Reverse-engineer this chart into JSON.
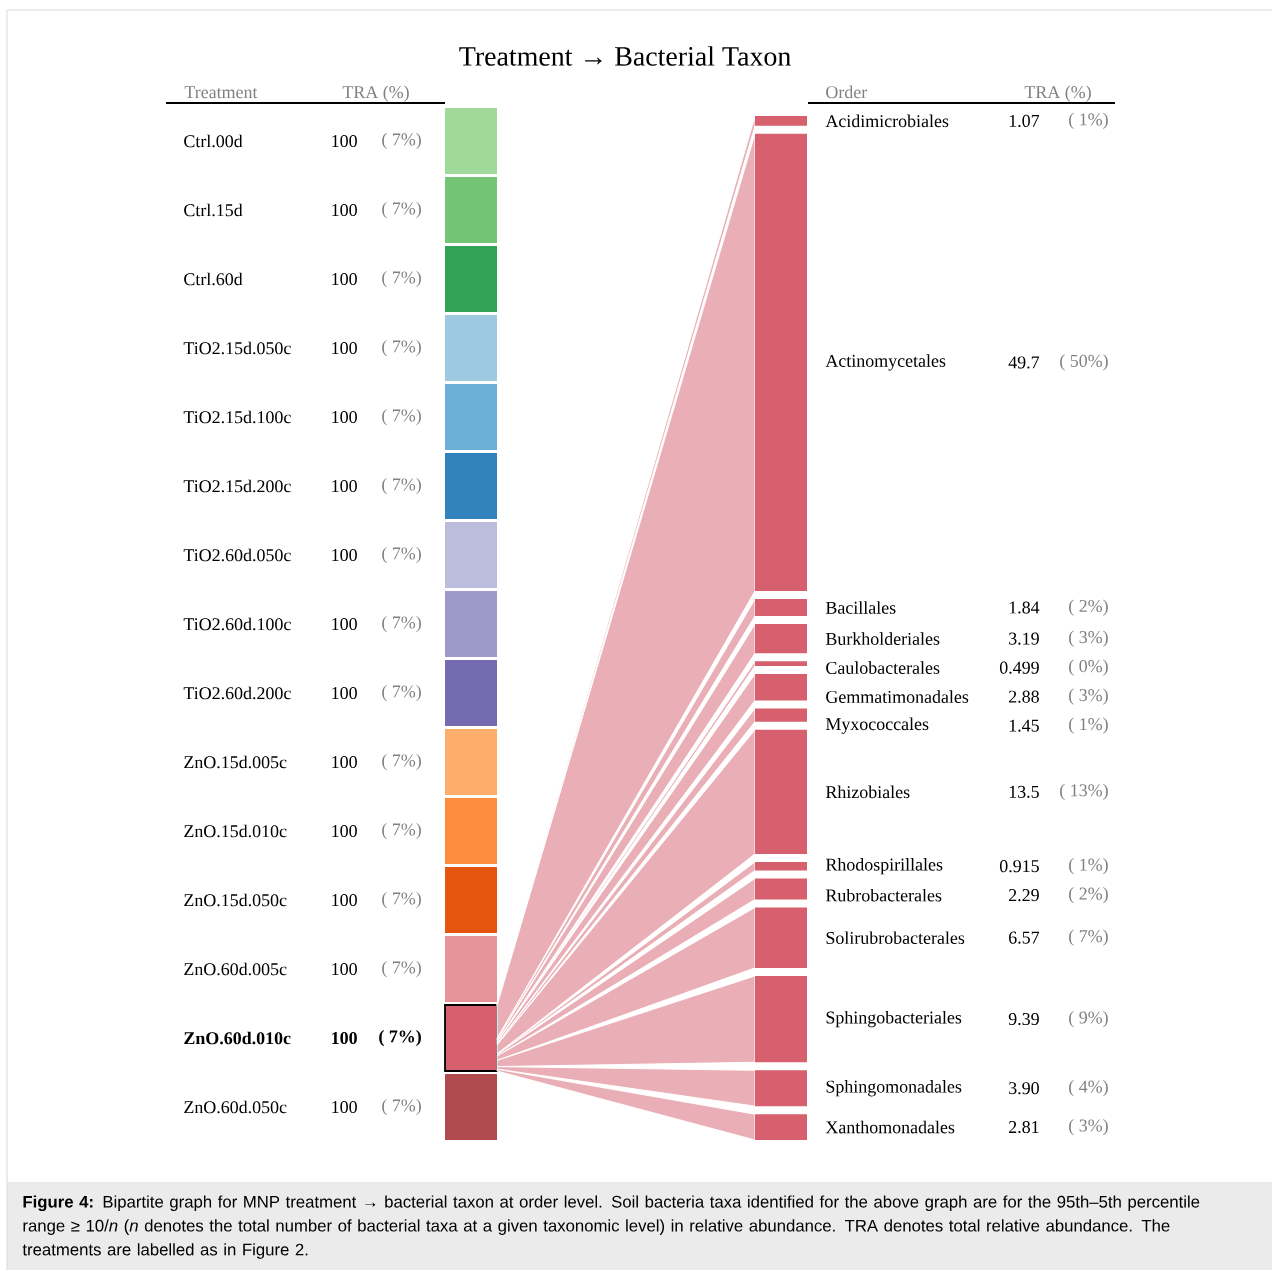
{
  "chart_data": [
    {
      "type": "other",
      "title": "Treatment → Bacterial Taxon",
      "xlabel": "Treatment",
      "ylabel": "TRA (%)",
      "categories": [
        "Ctrl.00d",
        "Ctrl.15d",
        "Ctrl.60d",
        "TiO2.15d.050c",
        "TiO2.15d.100c",
        "TiO2.15d.200c",
        "TiO2.60d.050c",
        "TiO2.60d.100c",
        "TiO2.60d.200c",
        "ZnO.15d.005c",
        "ZnO.15d.010c",
        "ZnO.15d.050c",
        "ZnO.60d.005c",
        "ZnO.60d.010c",
        "ZnO.60d.050c"
      ],
      "values": [
        100,
        100,
        100,
        100,
        100,
        100,
        100,
        100,
        100,
        100,
        100,
        100,
        100,
        100,
        100
      ],
      "value_labels": [
        "100",
        "100",
        "100",
        "100",
        "100",
        "100",
        "100",
        "100",
        "100",
        "100",
        "100",
        "100",
        "100",
        "100",
        "100"
      ],
      "annotations": [
        "( 7%)",
        "( 7%)",
        "( 7%)",
        "( 7%)",
        "( 7%)",
        "( 7%)",
        "( 7%)",
        "( 7%)",
        "( 7%)",
        "( 7%)",
        "( 7%)",
        "( 7%)",
        "( 7%)",
        "( 7%)",
        "( 7%)"
      ],
      "colors": [
        "#a1d99b",
        "#74c476",
        "#31a354",
        "#9ecae1",
        "#6baed6",
        "#3182bd",
        "#bcbddc",
        "#9e9ac8",
        "#756bb1",
        "#fdae6b",
        "#fd8d3c",
        "#e6550d",
        "#e6939a",
        "#d6606d",
        "#b04a4e"
      ]
    },
    {
      "type": "other",
      "xlabel": "Order",
      "ylabel": "TRA (%)",
      "categories": [
        "Acidimicrobiales",
        "Actinomycetales",
        "Bacillales",
        "Burkholderiales",
        "Caulobacterales",
        "Gemmatimonadales",
        "Myxococcales",
        "Rhizobiales",
        "Rhodospirillales",
        "Rubrobacterales",
        "Solirubrobacterales",
        "Sphingobacteriales",
        "Sphingomonadales",
        "Xanthomonadales"
      ],
      "values": [
        1.07,
        49.7,
        1.84,
        3.19,
        0.499,
        2.88,
        1.45,
        13.5,
        0.915,
        2.29,
        6.57,
        9.39,
        3.9,
        2.81
      ],
      "value_labels": [
        "1.07",
        "49.7",
        "1.84",
        "3.19",
        "0.499",
        "2.88",
        "1.45",
        "13.5",
        "0.915",
        "2.29",
        "6.57",
        "9.39",
        "3.90",
        "2.81"
      ],
      "color": "#d6606d",
      "annotations": [
        "( 1%)",
        "( 50%)",
        "( 2%)",
        "( 3%)",
        "( 0%)",
        "( 3%)",
        "( 1%)",
        "( 13%)",
        "( 1%)",
        "( 2%)",
        "( 7%)",
        "( 9%)",
        "( 4%)",
        "( 3%)",
        "**Figure 4:** Bipartite graph for MNP treatment → bacterial taxon at order level. Soil bacteria taxa identified for the above graph are for the 95th–5th percentile range ≥ 10/*n* (*n* denotes the total number of bacterial taxa at a given taxonomic level) in relative abundance. TRA denotes total relative abundance. The treatments are labelled as in Figure 2."
      ]
    }
  ]
}
